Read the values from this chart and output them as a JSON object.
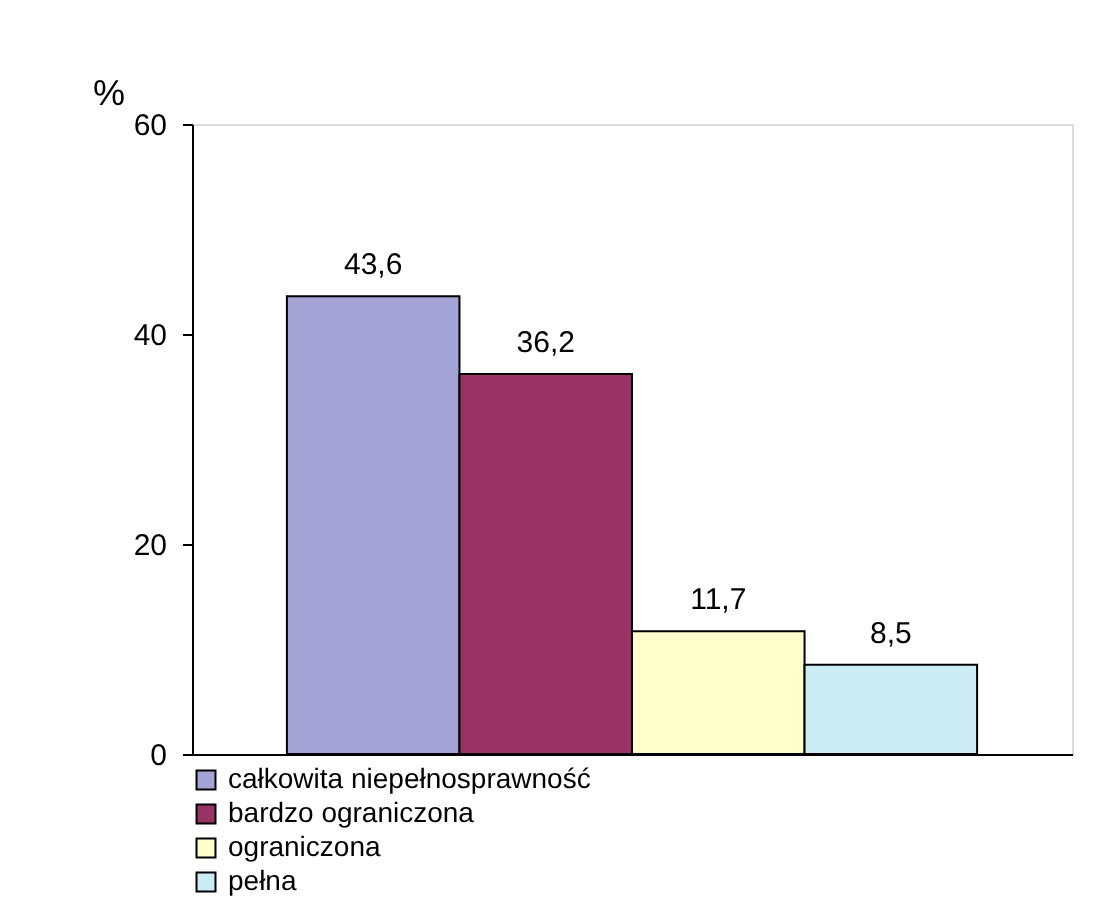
{
  "chart_data": {
    "type": "bar",
    "categories": [
      null
    ],
    "ylabel": "%",
    "ylim": [
      0,
      60
    ],
    "yticks": [
      0,
      20,
      40,
      60
    ],
    "grid": false,
    "legend": "bottom",
    "tick_labels": "y",
    "series": [
      {
        "name": "całkowita niepełnosprawność",
        "color": "#a3a3d6",
        "values": [
          43.6
        ],
        "value_labels": [
          "43,6"
        ]
      },
      {
        "name": "bardzo ograniczona",
        "color": "#993366",
        "values": [
          36.2
        ],
        "value_labels": [
          "36,2"
        ]
      },
      {
        "name": "ograniczona",
        "color": "#ffffcc",
        "values": [
          11.7
        ],
        "value_labels": [
          "11,7"
        ]
      },
      {
        "name": "pełna",
        "color": "#ccecf5",
        "values": [
          8.5
        ],
        "value_labels": [
          "8,5"
        ]
      }
    ]
  }
}
